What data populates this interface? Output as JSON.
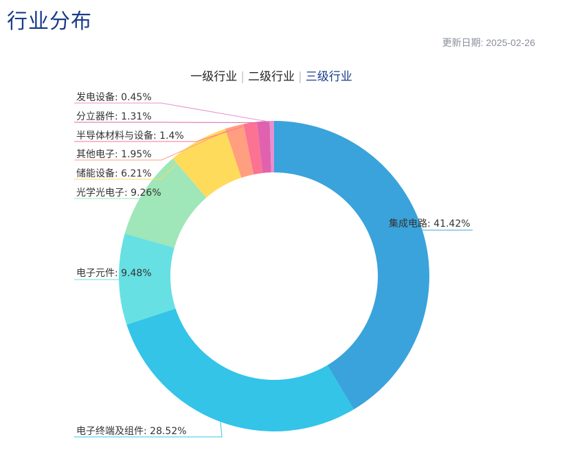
{
  "header": {
    "title": "行业分布",
    "update_date": "更新日期: 2025-02-26"
  },
  "tabs": [
    {
      "label": "一级行业",
      "active": false
    },
    {
      "label": "二级行业",
      "active": false
    },
    {
      "label": "三级行业",
      "active": true
    }
  ],
  "chart_data": {
    "type": "pie",
    "donut": true,
    "legend": "none",
    "slices": [
      {
        "name": "集成电路",
        "value": 41.42,
        "label": "集成电路: 41.42%",
        "color": "#3aa3db"
      },
      {
        "name": "电子终端及组件",
        "value": 28.52,
        "label": "电子终端及组件: 28.52%",
        "color": "#33c4e8"
      },
      {
        "name": "电子元件",
        "value": 9.48,
        "label": "电子元件: 9.48%",
        "color": "#67e0e3"
      },
      {
        "name": "光学光电子",
        "value": 9.26,
        "label": "光学光电子: 9.26%",
        "color": "#9fe6b8"
      },
      {
        "name": "储能设备",
        "value": 6.21,
        "label": "储能设备: 6.21%",
        "color": "#ffdb5c"
      },
      {
        "name": "其他电子",
        "value": 1.95,
        "label": "其他电子: 1.95%",
        "color": "#ff9f7f"
      },
      {
        "name": "半导体材料与设备",
        "value": 1.4,
        "label": "半导体材料与设备: 1.4%",
        "color": "#fb7293"
      },
      {
        "name": "分立器件",
        "value": 1.31,
        "label": "分立器件: 1.31%",
        "color": "#e062ae"
      },
      {
        "name": "发电设备",
        "value": 0.45,
        "label": "发电设备: 0.45%",
        "color": "#e690d1"
      }
    ]
  }
}
